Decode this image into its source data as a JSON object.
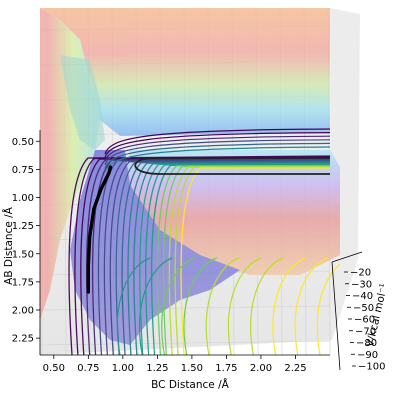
{
  "chart_data": {
    "type": "surface-contour-3d",
    "title": "",
    "xlabel": "BC Distance /Å",
    "ylabel": "AB Distance /Å",
    "zlabel": "V/kcal mol⁻¹",
    "x_ticks": [
      "0.50",
      "0.75",
      "1.00",
      "1.25",
      "1.50",
      "1.75",
      "2.00",
      "2.25"
    ],
    "y_ticks": [
      "0.50",
      "0.75",
      "1.00",
      "1.25",
      "1.50",
      "1.75",
      "2.00",
      "2.25"
    ],
    "z_ticks": [
      "−20",
      "−30",
      "−40",
      "−50",
      "−60",
      "−70",
      "−80",
      "−90",
      "−100"
    ],
    "xlim": [
      0.4,
      2.5
    ],
    "ylim": [
      0.4,
      2.4
    ],
    "zlim": [
      -100,
      -15
    ],
    "colormap": "viridis surface, rainbow translucent",
    "trajectory": {
      "color": "#000000",
      "points": [
        [
          0.75,
          1.84
        ],
        [
          0.75,
          1.6
        ],
        [
          0.76,
          1.35
        ],
        [
          0.79,
          1.1
        ],
        [
          0.84,
          0.93
        ],
        [
          0.9,
          0.78
        ],
        [
          0.91,
          0.73
        ]
      ]
    }
  }
}
